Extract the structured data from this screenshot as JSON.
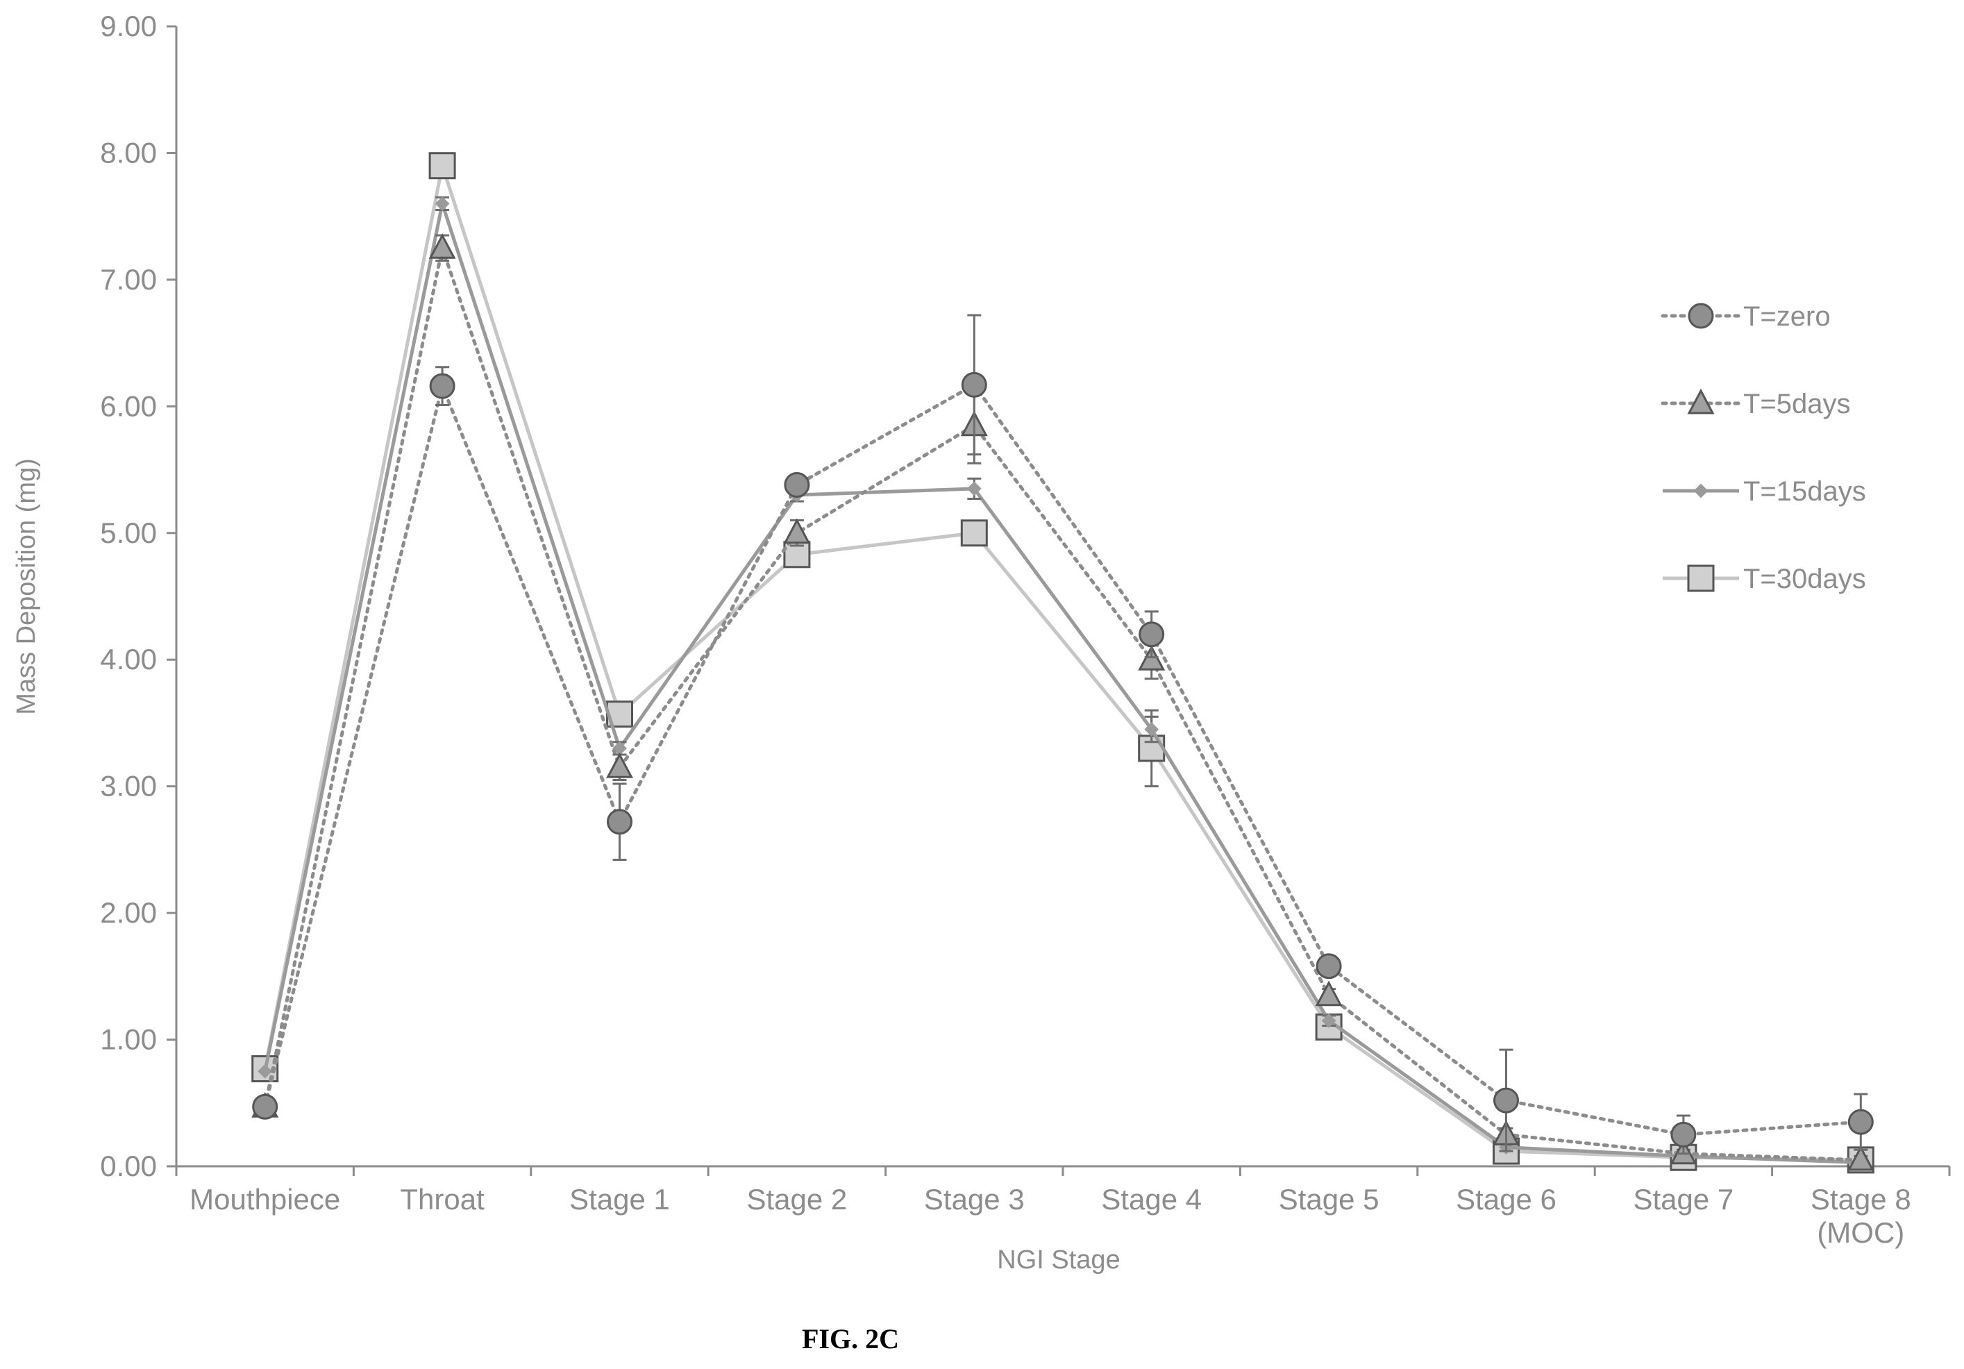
{
  "figure": {
    "caption": "FIG. 2C"
  },
  "chart_data": {
    "type": "line",
    "xlabel": "NGI Stage",
    "ylabel": "Mass Deposition (mg)",
    "ylim": [
      0,
      9
    ],
    "yticks": [
      "0.00",
      "1.00",
      "2.00",
      "3.00",
      "4.00",
      "5.00",
      "6.00",
      "7.00",
      "8.00",
      "9.00"
    ],
    "categories": [
      "Mouthpiece",
      "Throat",
      "Stage 1",
      "Stage 2",
      "Stage 3",
      "Stage 4",
      "Stage 5",
      "Stage 6",
      "Stage 7",
      "Stage 8\n(MOC)"
    ],
    "grid": false,
    "legend_position": "right",
    "series": [
      {
        "name": "T=zero",
        "marker": "circle",
        "line": "dotted",
        "color": "#8c8c8c",
        "fill": "#8f8f8f",
        "values": [
          0.47,
          6.16,
          2.72,
          5.38,
          6.17,
          4.2,
          1.58,
          0.52,
          0.25,
          0.35
        ],
        "errors": [
          0.06,
          0.15,
          0.3,
          0.05,
          0.55,
          0.18,
          0.08,
          0.4,
          0.15,
          0.22
        ]
      },
      {
        "name": "T=5days",
        "marker": "triangle",
        "line": "dotted",
        "color": "#8c8c8c",
        "fill": "#a0a0a0",
        "values": [
          0.47,
          7.25,
          3.15,
          5.0,
          5.85,
          4.0,
          1.35,
          0.25,
          0.1,
          0.05
        ],
        "errors": [
          0.04,
          0.1,
          0.1,
          0.1,
          0.3,
          0.15,
          0.05,
          0.05,
          0.03,
          0.03
        ]
      },
      {
        "name": "T=15days",
        "marker": "diamond",
        "line": "solid",
        "color": "#9a9a9a",
        "fill": "#9a9a9a",
        "values": [
          0.75,
          7.6,
          3.3,
          5.3,
          5.35,
          3.45,
          1.15,
          0.15,
          0.08,
          0.03
        ],
        "errors": [
          0,
          0.05,
          0.05,
          0.05,
          0.08,
          0.1,
          0.04,
          0.03,
          0.02,
          0.02
        ]
      },
      {
        "name": "T=30days",
        "marker": "square",
        "line": "solid",
        "color": "#c6c6c6",
        "fill": "#d0d0d0",
        "values": [
          0.77,
          7.9,
          3.57,
          4.83,
          5.0,
          3.3,
          1.1,
          0.12,
          0.07,
          0.05
        ],
        "errors": [
          0,
          0.05,
          0.05,
          0.05,
          0.05,
          0.3,
          0.04,
          0.02,
          0.02,
          0.02
        ]
      }
    ]
  }
}
